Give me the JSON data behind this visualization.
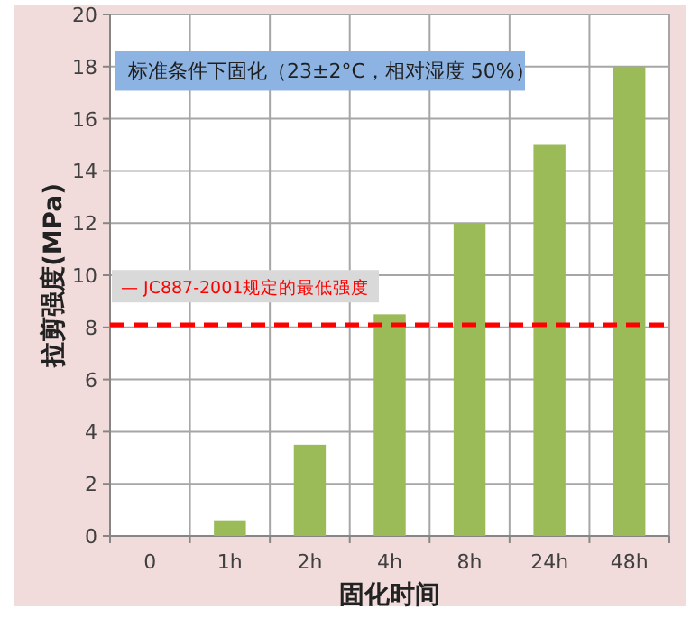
{
  "chart_data": {
    "type": "bar",
    "xlabel": "固化时间",
    "ylabel": "拉剪强度(MPa)",
    "categories": [
      "0",
      "1h",
      "2h",
      "4h",
      "8h",
      "24h",
      "48h"
    ],
    "values": [
      0,
      0.6,
      3.5,
      8.5,
      12,
      15,
      18
    ],
    "color": "#9bbb59",
    "ylim": [
      0,
      20
    ],
    "yticks": [
      0,
      2,
      4,
      6,
      8,
      10,
      12,
      14,
      16,
      18,
      20
    ],
    "grid": true,
    "ref_lines": [
      {
        "axis": "y",
        "value": 8.1,
        "label": "— JC887-2001规定的最低强度",
        "color": "#ff0000",
        "line_style": "dashed"
      }
    ],
    "annotations": [
      "标准条件下固化（23±2°C，相对湿度 50%）"
    ]
  }
}
